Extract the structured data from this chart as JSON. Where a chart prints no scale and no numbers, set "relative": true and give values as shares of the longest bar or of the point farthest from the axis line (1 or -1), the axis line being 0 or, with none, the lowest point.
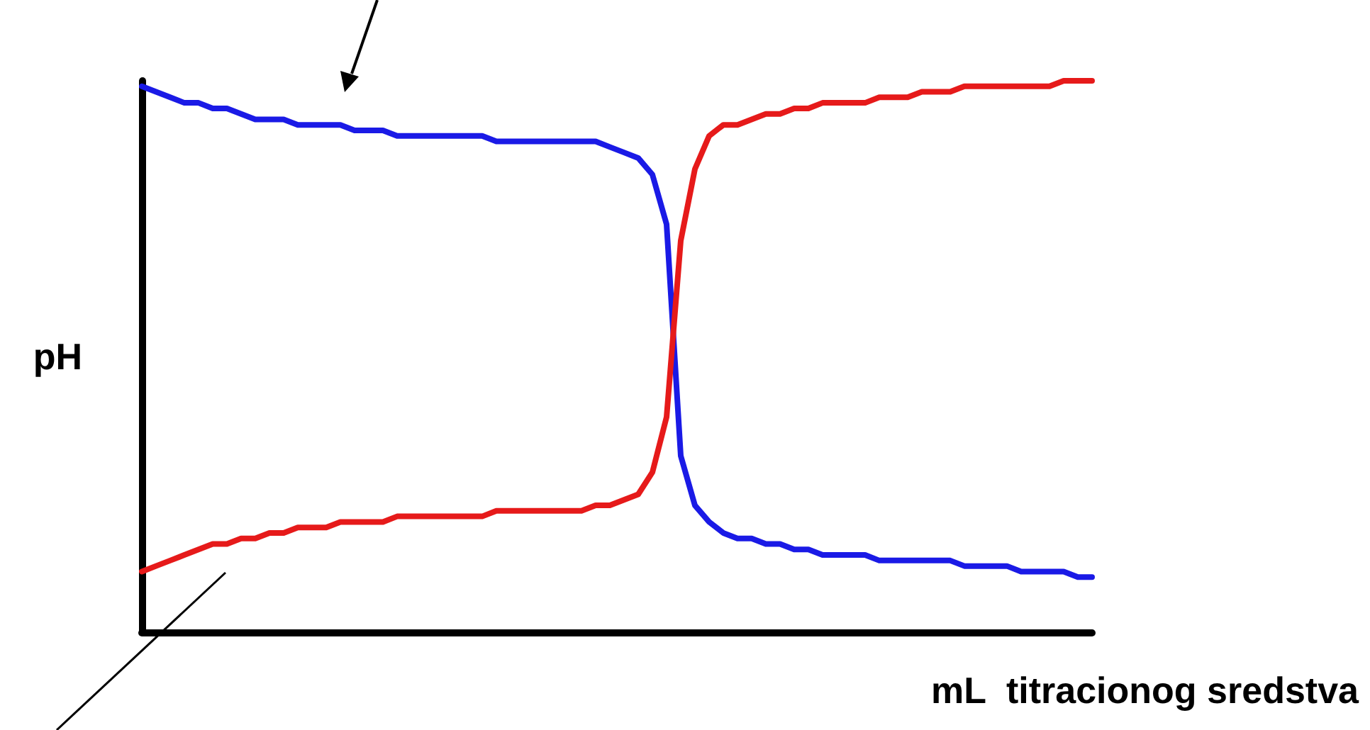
{
  "chart_data": {
    "type": "line",
    "relative": true,
    "xlabel": "mL  titracionog sredstva",
    "ylabel": "pH",
    "marker": "none",
    "line_style": "solid",
    "grid": false,
    "categories": [
      null,
      null,
      null,
      null,
      null,
      null,
      null,
      null,
      null,
      null,
      null,
      null,
      null,
      null,
      null,
      null,
      null,
      null,
      null,
      null,
      null,
      null,
      null,
      null,
      null,
      null,
      null,
      null,
      null,
      null,
      null,
      null,
      null,
      null,
      null,
      null,
      null,
      null,
      null,
      null,
      null,
      null,
      null,
      null,
      null,
      null,
      null,
      null,
      null,
      null,
      null,
      null,
      null,
      null,
      null,
      null,
      null,
      null,
      null,
      null,
      null,
      null,
      null,
      null,
      null,
      null,
      null,
      null
    ],
    "series": [
      {
        "color": "#1a1ae6",
        "values": [
          0.99,
          0.98,
          0.97,
          0.96,
          0.96,
          0.95,
          0.95,
          0.94,
          0.93,
          0.93,
          0.93,
          0.92,
          0.92,
          0.92,
          0.92,
          0.91,
          0.91,
          0.91,
          0.9,
          0.9,
          0.9,
          0.9,
          0.9,
          0.9,
          0.9,
          0.89,
          0.89,
          0.89,
          0.89,
          0.89,
          0.89,
          0.89,
          0.89,
          0.88,
          0.87,
          0.86,
          0.83,
          0.74,
          0.32,
          0.23,
          0.2,
          0.18,
          0.17,
          0.17,
          0.16,
          0.16,
          0.15,
          0.15,
          0.14,
          0.14,
          0.14,
          0.14,
          0.13,
          0.13,
          0.13,
          0.13,
          0.13,
          0.13,
          0.12,
          0.12,
          0.12,
          0.12,
          0.11,
          0.11,
          0.11,
          0.11,
          0.1,
          0.1
        ]
      },
      {
        "color": "#e61a1a",
        "values": [
          0.11,
          0.12,
          0.13,
          0.14,
          0.15,
          0.16,
          0.16,
          0.17,
          0.17,
          0.18,
          0.18,
          0.19,
          0.19,
          0.19,
          0.2,
          0.2,
          0.2,
          0.2,
          0.21,
          0.21,
          0.21,
          0.21,
          0.21,
          0.21,
          0.21,
          0.22,
          0.22,
          0.22,
          0.22,
          0.22,
          0.22,
          0.22,
          0.23,
          0.23,
          0.24,
          0.25,
          0.29,
          0.39,
          0.71,
          0.84,
          0.9,
          0.92,
          0.92,
          0.93,
          0.94,
          0.94,
          0.95,
          0.95,
          0.96,
          0.96,
          0.96,
          0.96,
          0.97,
          0.97,
          0.97,
          0.98,
          0.98,
          0.98,
          0.99,
          0.99,
          0.99,
          0.99,
          0.99,
          0.99,
          0.99,
          1.0,
          1.0,
          1
        ]
      }
    ]
  }
}
